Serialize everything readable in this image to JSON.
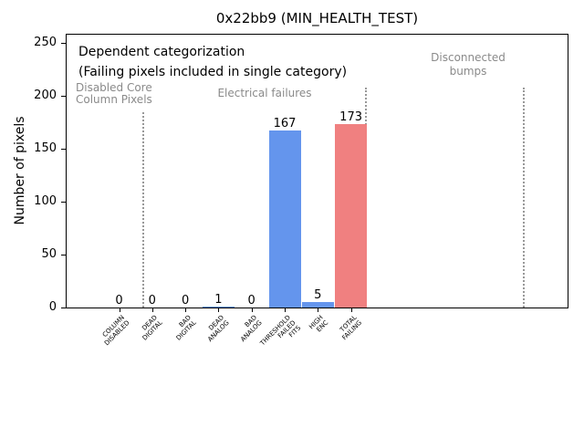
{
  "chart_data": {
    "type": "bar",
    "title": "0x22bb9 (MIN_HEALTH_TEST)",
    "ylabel": "Number of pixels",
    "xlabel": "",
    "categories": [
      "COLUMN\nDISABLED",
      "DEAD\nDIGITAL",
      "BAD\nDIGITAL",
      "DEAD\nANALOG",
      "BAD\nANALOG",
      "THRESHOLD\nFAILED\nFITS",
      "HIGH\nENC",
      "TOTAL\nFAILING"
    ],
    "values": [
      0,
      0,
      0,
      1,
      0,
      167,
      5,
      173
    ],
    "bar_colors": [
      "#6495ED",
      "#6495ED",
      "#6495ED",
      "#6495ED",
      "#6495ED",
      "#6495ED",
      "#6495ED",
      "#F08080"
    ],
    "yticks": [
      0,
      50,
      100,
      150,
      200,
      250
    ],
    "ylim": [
      0,
      258
    ],
    "grid": false,
    "legend": false,
    "annotations": {
      "dependent_line1": "Dependent categorization",
      "dependent_line2": "(Failing pixels included in single category)",
      "disabled_core_line1": "Disabled Core",
      "disabled_core_line2": "Column Pixels",
      "electrical": "Electrical failures",
      "disconnected_line1": "Disconnected",
      "disconnected_line2": "bumps"
    },
    "colors": {
      "bar_blue": "#6495ED",
      "bar_red": "#F08080",
      "annotation_gray": "#8a8a8a",
      "separator_gray": "#999999"
    },
    "separator_sections": [
      "Disabled Core Column Pixels",
      "Electrical failures",
      "Disconnected bumps"
    ]
  }
}
